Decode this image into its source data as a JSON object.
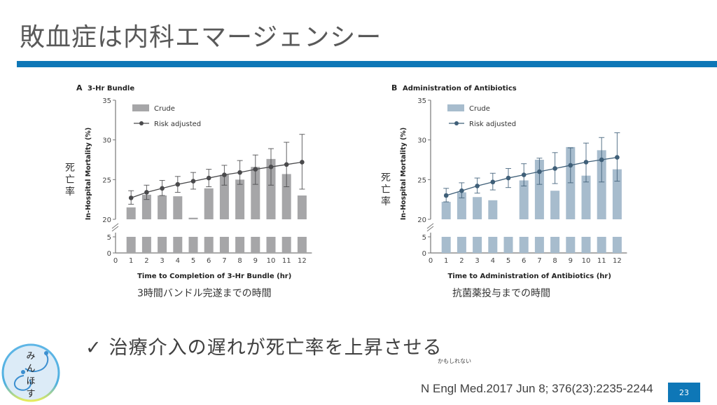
{
  "slide": {
    "title": "敗血症は内科エマージェンシー",
    "bullet": {
      "check_icon": "✓",
      "text": "治療介入の遅れが死亡率を上昇させる"
    },
    "small_note": "かもしれない",
    "citation": "N Engl Med.2017 Jun 8; 376(23):2235-2244",
    "page_number": "23",
    "logo_text": [
      "み",
      "ん",
      "ほ",
      "す"
    ],
    "accent_color": "#0e77b7"
  },
  "chart_data": [
    {
      "type": "bar",
      "panel": "A",
      "title": "3-Hr Bundle",
      "xlabel": "Time to Completion of 3-Hr Bundle (hr)",
      "xlabel_jp": "3時間バンドル完遂までの時間",
      "ylabel": "In-Hospital Mortality (%)",
      "ylabel_jp": "死亡率",
      "ylim": [
        0,
        35
      ],
      "axis_break": [
        5,
        20
      ],
      "y_ticks": [
        "0",
        "5",
        "20",
        "25",
        "30",
        "35"
      ],
      "x_ticks": [
        "0",
        "1",
        "2",
        "3",
        "4",
        "5",
        "6",
        "7",
        "8",
        "9",
        "10",
        "11",
        "12"
      ],
      "categories": [
        1,
        2,
        3,
        4,
        5,
        6,
        7,
        8,
        9,
        10,
        11,
        12
      ],
      "legend_position": "top-left",
      "bar_color": "#a6a6a8",
      "line_color": "#4a4a4c",
      "series": [
        {
          "name": "Crude",
          "kind": "bar",
          "values": [
            21.5,
            23.1,
            23.0,
            22.9,
            20.2,
            23.9,
            25.6,
            25.0,
            26.6,
            27.6,
            25.7,
            23.0
          ]
        },
        {
          "name": "Risk adjusted",
          "kind": "line",
          "values": [
            22.7,
            23.4,
            23.9,
            24.4,
            24.8,
            25.2,
            25.6,
            25.9,
            26.3,
            26.6,
            26.9,
            27.2
          ],
          "ci_low": [
            21.9,
            22.5,
            23.0,
            23.4,
            23.8,
            24.1,
            24.3,
            24.4,
            24.4,
            24.3,
            24.1,
            23.8
          ],
          "ci_high": [
            23.6,
            24.3,
            24.9,
            25.4,
            25.9,
            26.3,
            26.8,
            27.4,
            28.1,
            28.9,
            29.7,
            30.7
          ]
        }
      ]
    },
    {
      "type": "bar",
      "panel": "B",
      "title": "Administration of Antibiotics",
      "xlabel": "Time to Administration of Antibiotics (hr)",
      "xlabel_jp": "抗菌薬投与までの時間",
      "ylabel": "In-Hospital Mortality (%)",
      "ylabel_jp": "死亡率",
      "ylim": [
        0,
        35
      ],
      "axis_break": [
        5,
        20
      ],
      "y_ticks": [
        "0",
        "5",
        "20",
        "25",
        "30",
        "35"
      ],
      "x_ticks": [
        "0",
        "1",
        "2",
        "3",
        "4",
        "5",
        "6",
        "7",
        "8",
        "9",
        "10",
        "11",
        "12"
      ],
      "categories": [
        1,
        2,
        3,
        4,
        5,
        6,
        7,
        8,
        9,
        10,
        11,
        12
      ],
      "legend_position": "top-left",
      "bar_color": "#a7bccd",
      "line_color": "#3f5f78",
      "series": [
        {
          "name": "Crude",
          "kind": "bar",
          "values": [
            22.2,
            23.4,
            22.8,
            22.4,
            null,
            24.9,
            27.5,
            23.6,
            29.1,
            25.5,
            28.7,
            26.3
          ]
        },
        {
          "name": "Risk adjusted",
          "kind": "line",
          "values": [
            23.0,
            23.6,
            24.2,
            24.7,
            25.2,
            25.6,
            26.0,
            26.4,
            26.8,
            27.2,
            27.5,
            27.8
          ],
          "ci_low": [
            22.2,
            22.7,
            23.3,
            23.7,
            24.0,
            24.2,
            24.4,
            24.5,
            24.6,
            24.7,
            24.7,
            24.8
          ],
          "ci_high": [
            23.9,
            24.6,
            25.2,
            25.8,
            26.4,
            27.0,
            27.7,
            28.4,
            29.0,
            29.6,
            30.3,
            30.9
          ]
        }
      ]
    }
  ]
}
